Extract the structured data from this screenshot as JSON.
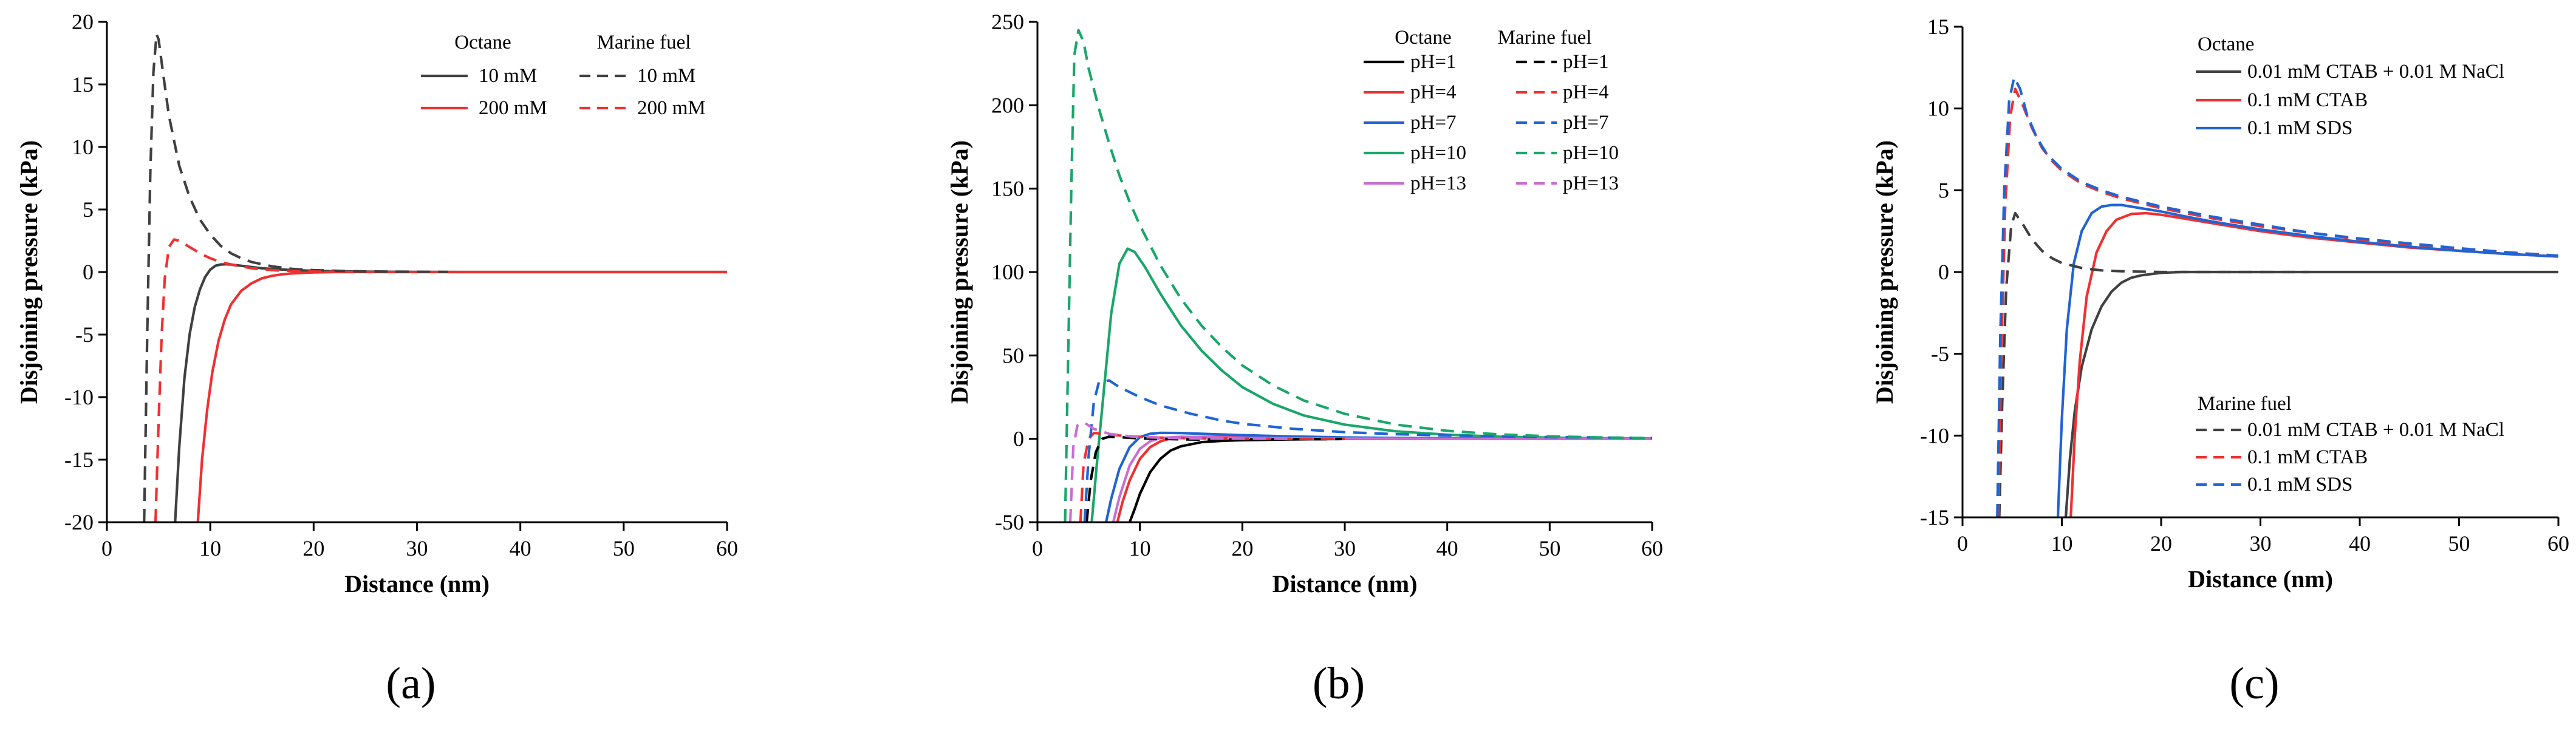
{
  "chart_data": [
    {
      "type": "line",
      "panel_label": "(a)",
      "xlabel": "Distance (nm)",
      "ylabel": "Disjoining pressure (kPa)",
      "xlim": [
        0,
        60
      ],
      "ylim": [
        -20,
        20
      ],
      "xticks": [
        0,
        10,
        20,
        30,
        40,
        50,
        60
      ],
      "yticks": [
        -20,
        -15,
        -10,
        -5,
        0,
        5,
        10,
        15,
        20
      ],
      "legend_position": "top-right",
      "legend_groups": [
        {
          "title": "Octane",
          "entries": [
            "10 mM",
            "200 mM"
          ]
        },
        {
          "title": "Marine fuel",
          "entries": [
            "10 mM",
            "200 mM"
          ]
        }
      ],
      "series": [
        {
          "name": "10 mM",
          "group": "Octane",
          "color": "#404040",
          "dash": "solid",
          "x": [
            6.6,
            7.0,
            7.5,
            8.0,
            8.5,
            9.0,
            9.5,
            10.0,
            10.5,
            11.0,
            11.5,
            12.0,
            12.5,
            13,
            14,
            15,
            16,
            18,
            20,
            22,
            25,
            30,
            35,
            40,
            50,
            60
          ],
          "y": [
            -20,
            -14,
            -8.5,
            -5.0,
            -2.8,
            -1.4,
            -0.4,
            0.2,
            0.5,
            0.6,
            0.62,
            0.6,
            0.55,
            0.5,
            0.4,
            0.3,
            0.25,
            0.15,
            0.1,
            0.06,
            0.03,
            0.01,
            0.0,
            0.0,
            0.0,
            0.0
          ]
        },
        {
          "name": "200 mM",
          "group": "Octane",
          "color": "#f03030",
          "dash": "solid",
          "x": [
            8.8,
            9.2,
            9.7,
            10.2,
            10.8,
            11.4,
            12.0,
            13,
            14,
            15,
            16,
            17,
            18,
            20,
            22,
            25,
            30,
            40,
            50,
            60
          ],
          "y": [
            -20,
            -15,
            -11,
            -8,
            -5.5,
            -3.8,
            -2.6,
            -1.5,
            -0.9,
            -0.5,
            -0.3,
            -0.18,
            -0.1,
            -0.03,
            0.0,
            0.0,
            0.0,
            0.0,
            0.0,
            0.0
          ]
        },
        {
          "name": "10 mM",
          "group": "Marine fuel",
          "color": "#404040",
          "dash": "dashed",
          "x": [
            3.6,
            3.9,
            4.2,
            4.5,
            4.8,
            5.0,
            5.5,
            6.0,
            7.0,
            8.0,
            9.0,
            10.0,
            11.0,
            12.0,
            13.0,
            14.0,
            16.0,
            18.0,
            20.0,
            22.0,
            25.0,
            30.0,
            33.0
          ],
          "y": [
            -20,
            -5,
            8,
            16,
            19,
            18.6,
            15.5,
            12.5,
            8.5,
            6.0,
            4.2,
            3.0,
            2.1,
            1.5,
            1.1,
            0.8,
            0.45,
            0.25,
            0.15,
            0.1,
            0.05,
            0.02,
            0.01
          ]
        },
        {
          "name": "200 mM",
          "group": "Marine fuel",
          "color": "#f03030",
          "dash": "dashed",
          "x": [
            4.7,
            5.0,
            5.3,
            5.6,
            6.0,
            6.5,
            7.0,
            8.0,
            9.0,
            10.0,
            11.0,
            12.0,
            14.0,
            16.0,
            18.0,
            20.0,
            22.0
          ],
          "y": [
            -20,
            -12,
            -5,
            -0.5,
            2.0,
            2.6,
            2.5,
            2.0,
            1.5,
            1.1,
            0.8,
            0.6,
            0.3,
            0.15,
            0.08,
            0.04,
            0.02
          ]
        }
      ]
    },
    {
      "type": "line",
      "panel_label": "(b)",
      "xlabel": "Distance (nm)",
      "ylabel": "Disjoining pressure (kPa)",
      "xlim": [
        0,
        60
      ],
      "ylim": [
        -50,
        250
      ],
      "xticks": [
        0,
        10,
        20,
        30,
        40,
        50,
        60
      ],
      "yticks": [
        -50,
        0,
        50,
        100,
        150,
        200,
        250
      ],
      "legend_position": "top-right",
      "legend_groups": [
        {
          "title": "Octane",
          "entries": [
            "pH=1",
            "pH=4",
            "pH=7",
            "pH=10",
            "pH=13"
          ]
        },
        {
          "title": "Marine fuel",
          "entries": [
            "pH=1",
            "pH=4",
            "pH=7",
            "pH=10",
            "pH=13"
          ]
        }
      ],
      "series": [
        {
          "name": "pH=1",
          "group": "Octane",
          "color": "#000000",
          "dash": "solid",
          "x": [
            9.0,
            9.5,
            10,
            11,
            12,
            13,
            14,
            16,
            18,
            20,
            25,
            30,
            40,
            50,
            60
          ],
          "y": [
            -50,
            -42,
            -33,
            -20,
            -12,
            -7,
            -4.5,
            -2,
            -1.2,
            -0.8,
            -0.3,
            -0.1,
            0,
            0,
            0
          ]
        },
        {
          "name": "pH=4",
          "group": "Octane",
          "color": "#f03030",
          "dash": "solid",
          "x": [
            7.8,
            8.3,
            9,
            10,
            11,
            12,
            13,
            15,
            18,
            20,
            25,
            30,
            40,
            50,
            60
          ],
          "y": [
            -50,
            -38,
            -25,
            -12,
            -5,
            -1.5,
            0.3,
            1.0,
            1.2,
            1.0,
            0.6,
            0.3,
            0.1,
            0,
            0
          ]
        },
        {
          "name": "pH=7",
          "group": "Octane",
          "color": "#1f64d4",
          "dash": "solid",
          "x": [
            6.7,
            7.2,
            8,
            9,
            10,
            11,
            12,
            14,
            16,
            18,
            20,
            25,
            30,
            40,
            50,
            60
          ],
          "y": [
            -50,
            -36,
            -18,
            -5,
            1,
            3,
            3.6,
            3.5,
            3.0,
            2.6,
            2.2,
            1.4,
            0.8,
            0.3,
            0.1,
            0
          ]
        },
        {
          "name": "pH=10",
          "group": "Octane",
          "color": "#1aa66a",
          "dash": "solid",
          "x": [
            5.3,
            5.8,
            6.5,
            7.2,
            8.0,
            8.8,
            9.5,
            10.5,
            12,
            14,
            16,
            18,
            20,
            23,
            26,
            30,
            35,
            40,
            45,
            50,
            55,
            60
          ],
          "y": [
            -50,
            -15,
            30,
            75,
            105,
            114,
            112,
            103,
            87,
            68,
            53,
            41,
            31,
            21,
            14,
            8.5,
            4.5,
            2.5,
            1.3,
            0.7,
            0.4,
            0.2
          ]
        },
        {
          "name": "pH=13",
          "group": "Octane",
          "color": "#c86ed2",
          "dash": "solid",
          "x": [
            7.4,
            8.0,
            9,
            10,
            11,
            12,
            14,
            16,
            20,
            25,
            30,
            40,
            60
          ],
          "y": [
            -50,
            -35,
            -16,
            -6,
            -1.5,
            0.5,
            1.2,
            1.0,
            0.6,
            0.3,
            0.1,
            0,
            0
          ]
        },
        {
          "name": "pH=1",
          "group": "Marine fuel",
          "color": "#000000",
          "dash": "dashed",
          "x": [
            4.8,
            5.2,
            5.7,
            6.3,
            7,
            8,
            9,
            10,
            12,
            14,
            16,
            20,
            25,
            30
          ],
          "y": [
            -50,
            -25,
            -8,
            0,
            1.3,
            1.0,
            0.6,
            0.3,
            0,
            -0.3,
            -0.5,
            -0.5,
            -0.3,
            -0.1
          ]
        },
        {
          "name": "pH=4",
          "group": "Marine fuel",
          "color": "#f03030",
          "dash": "dashed",
          "x": [
            4.2,
            4.5,
            5.0,
            5.5,
            6.5,
            8,
            10,
            12,
            15,
            20,
            25,
            30
          ],
          "y": [
            -50,
            -15,
            0,
            3.5,
            3.0,
            2.0,
            1.2,
            0.7,
            0.3,
            0.1,
            0,
            0
          ]
        },
        {
          "name": "pH=7",
          "group": "Marine fuel",
          "color": "#1f64d4",
          "dash": "dashed",
          "x": [
            4.6,
            5.0,
            5.5,
            6.0,
            7.0,
            8,
            10,
            12,
            15,
            18,
            20,
            25,
            30,
            35,
            40,
            50,
            60
          ],
          "y": [
            -50,
            -10,
            22,
            34,
            35,
            31,
            25,
            20,
            15,
            11,
            9,
            6,
            4,
            2.8,
            2,
            1,
            0.5
          ]
        },
        {
          "name": "pH=10",
          "group": "Marine fuel",
          "color": "#1aa66a",
          "dash": "dashed",
          "x": [
            2.7,
            3.0,
            3.3,
            3.6,
            4.0,
            4.5,
            5.0,
            6,
            7,
            8,
            9,
            10,
            12,
            14,
            16,
            18,
            20,
            23,
            26,
            30,
            35,
            40,
            45,
            50,
            55,
            60
          ],
          "y": [
            -50,
            50,
            150,
            230,
            245,
            238,
            222,
            198,
            177,
            158,
            142,
            128,
            104,
            84,
            68,
            55,
            44,
            32,
            23,
            15,
            8.5,
            4.8,
            2.7,
            1.5,
            0.8,
            0.4
          ]
        },
        {
          "name": "pH=13",
          "group": "Marine fuel",
          "color": "#c86ed2",
          "dash": "dashed",
          "x": [
            3.2,
            3.5,
            3.9,
            4.5,
            5.5,
            7,
            9,
            12,
            16,
            20,
            25
          ],
          "y": [
            -50,
            -5,
            8,
            10,
            6,
            3,
            1.5,
            0.6,
            0.2,
            0.1,
            0
          ]
        }
      ]
    },
    {
      "type": "line",
      "panel_label": "(c)",
      "xlabel": "Distance (nm)",
      "ylabel": "Disjoining pressure (kPa)",
      "xlim": [
        0,
        60
      ],
      "ylim": [
        -15,
        15
      ],
      "xticks": [
        0,
        10,
        20,
        30,
        40,
        50,
        60
      ],
      "yticks": [
        -15,
        -10,
        -5,
        0,
        5,
        10,
        15
      ],
      "legend_position": "top-right and bottom-right",
      "legend_groups": [
        {
          "title": "Octane",
          "entries": [
            "0.01 mM CTAB + 0.01 M NaCl",
            "0.1 mM CTAB",
            "0.1 mM SDS"
          ]
        },
        {
          "title": "Marine fuel",
          "entries": [
            "0.01 mM CTAB + 0.01 M NaCl",
            "0.1 mM CTAB",
            "0.1 mM SDS"
          ]
        }
      ],
      "series": [
        {
          "name": "0.01 mM CTAB + 0.01 M NaCl",
          "group": "Octane",
          "color": "#404040",
          "dash": "solid",
          "x": [
            10.4,
            10.8,
            11.3,
            12,
            13,
            14,
            15,
            16,
            17,
            18,
            20,
            22,
            25,
            30,
            40,
            50,
            60
          ],
          "y": [
            -15,
            -11.5,
            -8.5,
            -5.8,
            -3.5,
            -2.1,
            -1.2,
            -0.65,
            -0.35,
            -0.2,
            -0.05,
            0,
            0,
            0,
            0,
            0,
            0
          ]
        },
        {
          "name": "0.1 mM CTAB",
          "group": "Octane",
          "color": "#f03030",
          "dash": "solid",
          "x": [
            10.9,
            11.3,
            11.8,
            12.5,
            13.5,
            14.5,
            15.5,
            17,
            18.5,
            20,
            22,
            25,
            30,
            35,
            40,
            45,
            50,
            55,
            60
          ],
          "y": [
            -15,
            -10,
            -5.5,
            -1.5,
            1.2,
            2.5,
            3.2,
            3.55,
            3.6,
            3.5,
            3.3,
            3.0,
            2.5,
            2.1,
            1.8,
            1.5,
            1.3,
            1.1,
            0.95
          ]
        },
        {
          "name": "0.1 mM SDS",
          "group": "Octane",
          "color": "#1f64d4",
          "dash": "solid",
          "x": [
            9.6,
            10.0,
            10.5,
            11.2,
            12,
            13,
            14,
            15,
            16,
            18,
            20,
            22,
            25,
            30,
            35,
            40,
            45,
            50,
            55,
            60
          ],
          "y": [
            -15,
            -9,
            -3.5,
            0.5,
            2.5,
            3.6,
            4.0,
            4.1,
            4.1,
            3.9,
            3.7,
            3.45,
            3.1,
            2.6,
            2.2,
            1.85,
            1.55,
            1.3,
            1.1,
            0.95
          ]
        },
        {
          "name": "0.01 mM CTAB + 0.01 M NaCl",
          "group": "Marine fuel",
          "color": "#404040",
          "dash": "dashed",
          "x": [
            3.7,
            4.0,
            4.4,
            4.9,
            5.3,
            6.0,
            7.0,
            8,
            9,
            10,
            12,
            14,
            16,
            20,
            25,
            30,
            35
          ],
          "y": [
            -15,
            -8,
            -1,
            2.8,
            3.6,
            3.0,
            2.0,
            1.3,
            0.85,
            0.55,
            0.25,
            0.1,
            0.05,
            0,
            0,
            0,
            0
          ]
        },
        {
          "name": "0.1 mM CTAB",
          "group": "Marine fuel",
          "color": "#f03030",
          "dash": "dashed",
          "x": [
            3.6,
            3.9,
            4.3,
            4.8,
            5.3,
            6.0,
            7,
            8,
            9,
            10,
            12,
            14,
            16,
            18,
            20,
            25,
            30,
            35,
            40,
            45,
            50,
            55,
            60
          ],
          "y": [
            -15,
            -5,
            4,
            9.5,
            11.2,
            10.3,
            8.8,
            7.6,
            6.8,
            6.2,
            5.4,
            4.9,
            4.5,
            4.2,
            3.9,
            3.3,
            2.8,
            2.4,
            2.0,
            1.7,
            1.45,
            1.2,
            1.0
          ]
        },
        {
          "name": "0.1 mM SDS",
          "group": "Marine fuel",
          "color": "#1f64d4",
          "dash": "dashed",
          "x": [
            3.5,
            3.8,
            4.2,
            4.7,
            5.2,
            5.8,
            6.5,
            7.5,
            8.5,
            10,
            12,
            14,
            16,
            18,
            20,
            25,
            30,
            35,
            40,
            45,
            50,
            55,
            60
          ],
          "y": [
            -15,
            -4,
            5,
            10.5,
            11.9,
            11.2,
            9.6,
            8.2,
            7.2,
            6.3,
            5.5,
            5.0,
            4.6,
            4.3,
            4.0,
            3.4,
            2.9,
            2.4,
            2.05,
            1.75,
            1.45,
            1.2,
            1.0
          ]
        }
      ]
    }
  ]
}
